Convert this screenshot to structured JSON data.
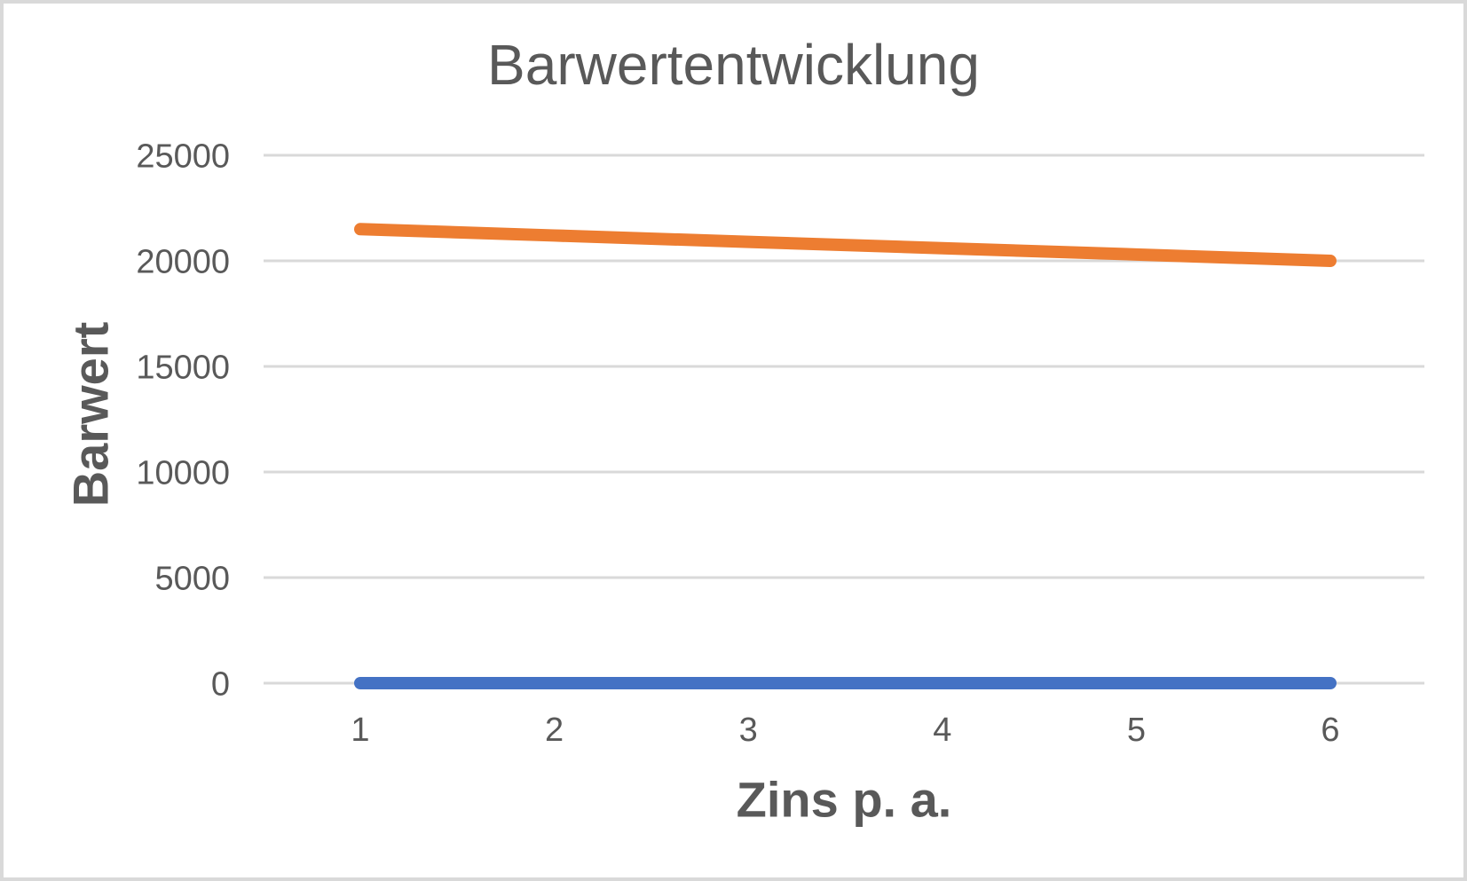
{
  "page": {
    "background_color": "#FFFFFF",
    "border_color": "#D9D9D9"
  },
  "chart_data": {
    "type": "line",
    "title": "Barwertentwicklung",
    "xlabel": "Zins p. a.",
    "ylabel": "Barwert",
    "categories": [
      1,
      2,
      3,
      4,
      5,
      6
    ],
    "series": [
      {
        "color": "#4472C4",
        "values": [
          0,
          0,
          0,
          0,
          0,
          0
        ]
      },
      {
        "color": "#ED7D31",
        "values": [
          21500,
          21200,
          20900,
          20600,
          20300,
          20000
        ]
      }
    ],
    "yticks": [
      0,
      5000,
      10000,
      15000,
      20000,
      25000
    ],
    "ylim": [
      0,
      25000
    ],
    "grid": true,
    "gridline_color": "#D9D9D9",
    "text_color": "#595959",
    "legend": "none"
  }
}
